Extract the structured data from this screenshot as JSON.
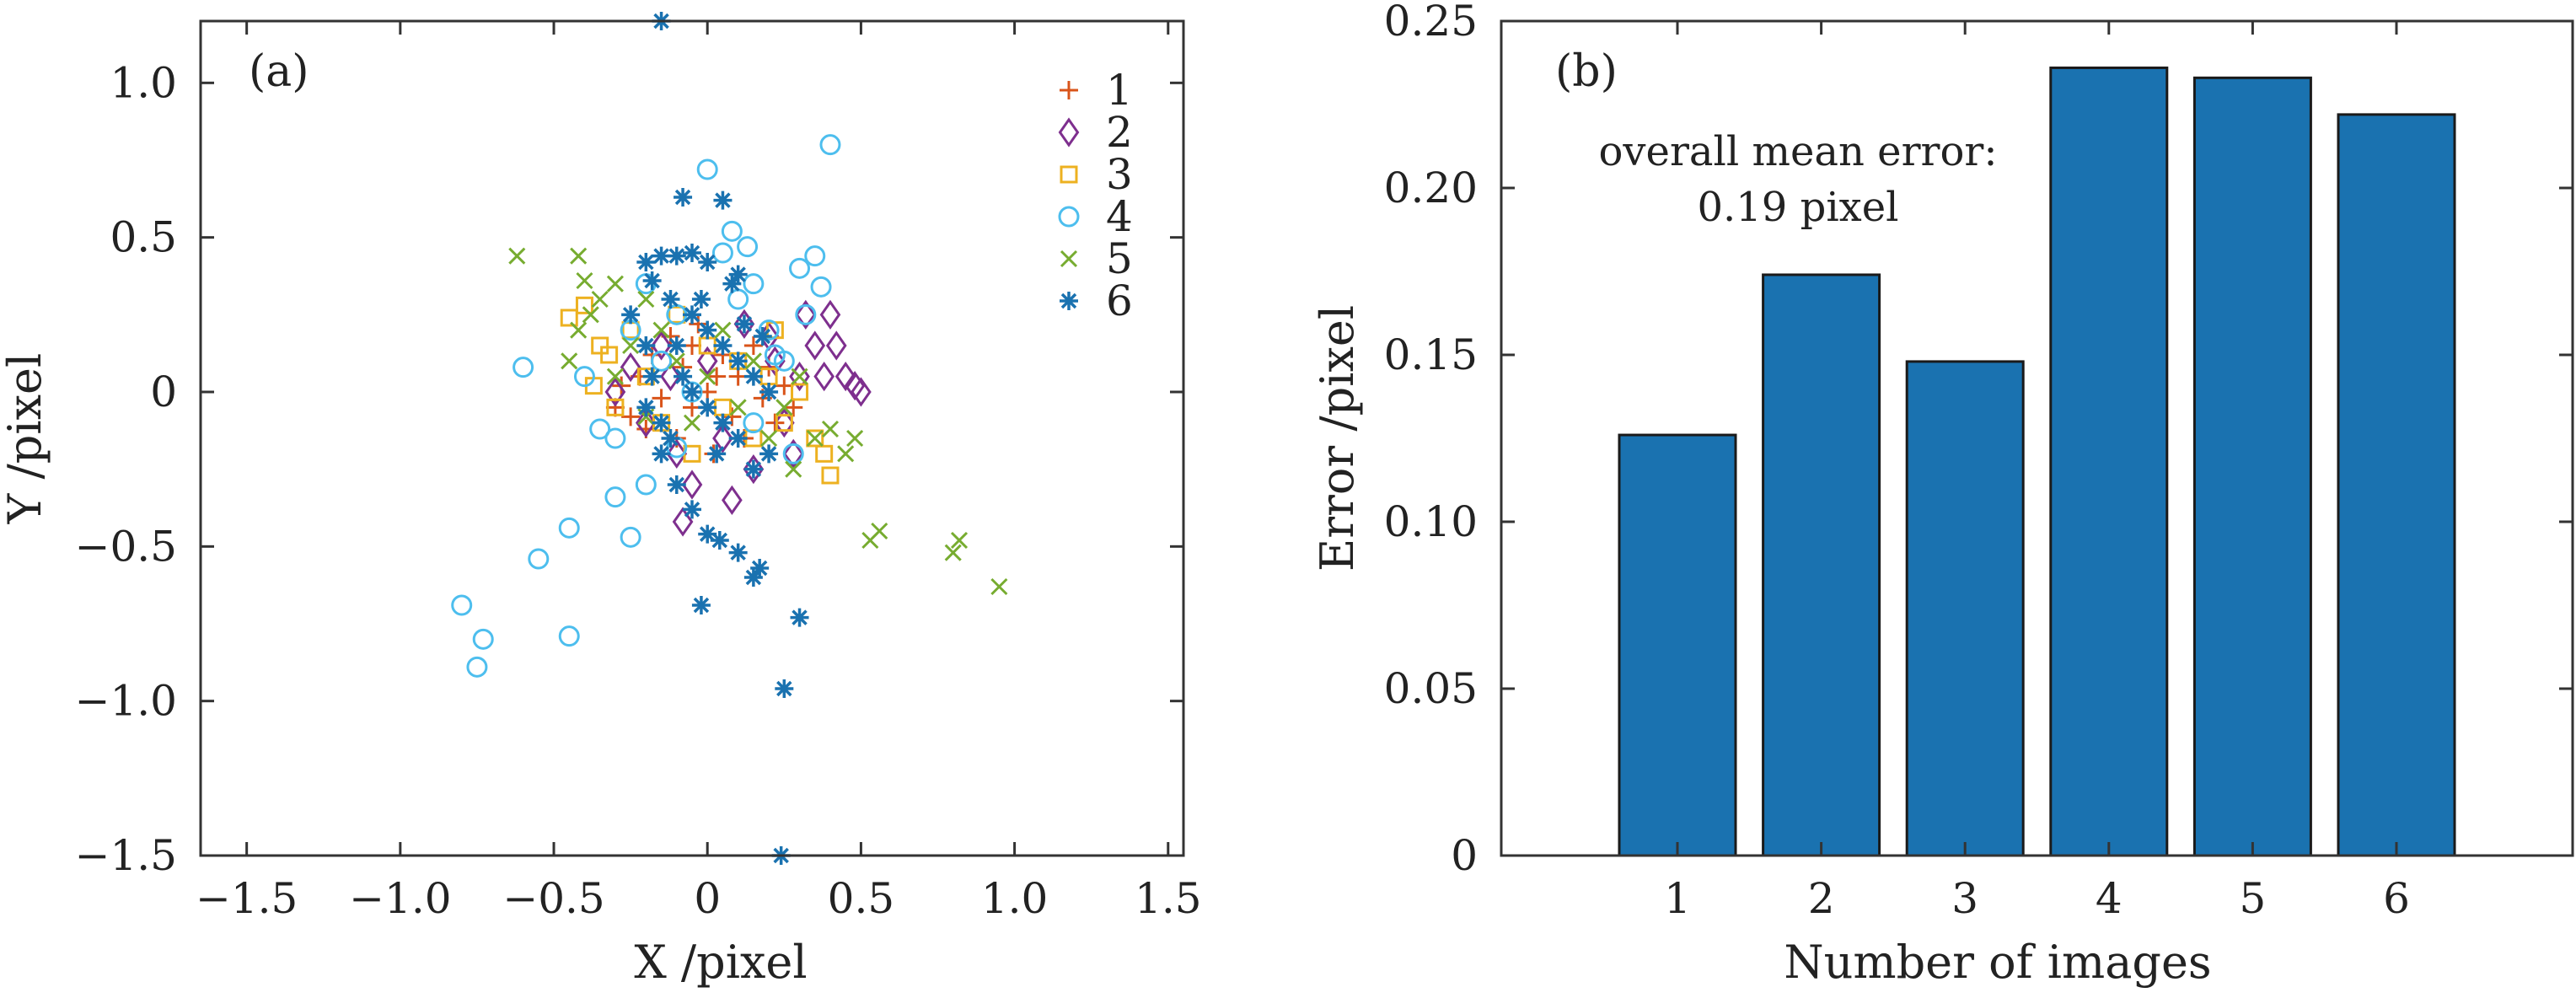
{
  "chart_data": [
    {
      "panel": "(a)",
      "type": "scatter",
      "xlabel": "X /pixel",
      "ylabel": "Y /pixel",
      "xlim": [
        -1.65,
        1.55
      ],
      "ylim": [
        -1.5,
        1.2
      ],
      "xticks": [
        -1.5,
        -1.0,
        -0.5,
        0,
        0.5,
        1.0,
        1.5
      ],
      "xtick_labels": [
        "−1.5",
        "−1.0",
        "−0.5",
        "0",
        "0.5",
        "1.0",
        "1.5"
      ],
      "yticks": [
        1.0,
        0.5,
        0,
        -0.5,
        -1.0,
        -1.5
      ],
      "ytick_labels": [
        "1.0",
        "0.5",
        "0",
        "−0.5",
        "−1.0",
        "−1.5"
      ],
      "grid": false,
      "legend_position": "top-right",
      "series": [
        {
          "name": "1",
          "marker": "plus",
          "color": "#d9541a",
          "points": [
            [
              -0.3,
              -0.05
            ],
            [
              -0.28,
              0.02
            ],
            [
              -0.25,
              -0.08
            ],
            [
              -0.22,
              0.05
            ],
            [
              -0.2,
              -0.12
            ],
            [
              -0.18,
              0.12
            ],
            [
              -0.15,
              -0.02
            ],
            [
              -0.12,
              0.18
            ],
            [
              -0.1,
              -0.15
            ],
            [
              -0.08,
              0.08
            ],
            [
              -0.05,
              -0.05
            ],
            [
              -0.03,
              0.22
            ],
            [
              0.0,
              0.0
            ],
            [
              0.02,
              -0.2
            ],
            [
              0.05,
              0.12
            ],
            [
              0.08,
              -0.08
            ],
            [
              0.1,
              0.05
            ],
            [
              0.12,
              -0.15
            ],
            [
              0.15,
              0.15
            ],
            [
              0.18,
              -0.02
            ],
            [
              0.2,
              0.08
            ],
            [
              0.22,
              -0.1
            ],
            [
              0.25,
              0.02
            ],
            [
              0.28,
              -0.05
            ],
            [
              -0.05,
              0.15
            ],
            [
              0.03,
              0.05
            ]
          ]
        },
        {
          "name": "2",
          "marker": "diamond",
          "color": "#7e2f8e",
          "points": [
            [
              -0.3,
              0.0
            ],
            [
              -0.25,
              0.08
            ],
            [
              -0.2,
              -0.1
            ],
            [
              -0.15,
              0.15
            ],
            [
              -0.1,
              -0.2
            ],
            [
              -0.08,
              -0.42
            ],
            [
              -0.05,
              -0.3
            ],
            [
              0.0,
              0.1
            ],
            [
              0.05,
              -0.15
            ],
            [
              0.08,
              -0.35
            ],
            [
              0.12,
              0.22
            ],
            [
              0.15,
              -0.25
            ],
            [
              0.2,
              0.18
            ],
            [
              0.25,
              -0.1
            ],
            [
              0.3,
              0.05
            ],
            [
              0.32,
              0.25
            ],
            [
              0.35,
              0.15
            ],
            [
              0.38,
              0.05
            ],
            [
              0.4,
              0.25
            ],
            [
              0.42,
              0.15
            ],
            [
              0.45,
              0.05
            ],
            [
              0.48,
              0.02
            ],
            [
              0.5,
              0.0
            ],
            [
              0.28,
              -0.2
            ],
            [
              0.22,
              0.1
            ],
            [
              -0.12,
              0.05
            ]
          ]
        },
        {
          "name": "3",
          "marker": "square",
          "color": "#edb120",
          "points": [
            [
              -0.45,
              0.24
            ],
            [
              -0.4,
              0.28
            ],
            [
              -0.35,
              0.15
            ],
            [
              -0.37,
              0.02
            ],
            [
              -0.32,
              0.12
            ],
            [
              -0.3,
              -0.05
            ],
            [
              -0.25,
              0.2
            ],
            [
              -0.2,
              0.05
            ],
            [
              -0.15,
              -0.1
            ],
            [
              -0.1,
              0.25
            ],
            [
              -0.05,
              -0.2
            ],
            [
              0.0,
              0.15
            ],
            [
              0.05,
              -0.05
            ],
            [
              0.1,
              0.1
            ],
            [
              0.15,
              -0.15
            ],
            [
              0.2,
              0.05
            ],
            [
              0.25,
              -0.1
            ],
            [
              0.3,
              0.0
            ],
            [
              0.35,
              -0.15
            ],
            [
              0.4,
              -0.27
            ],
            [
              0.38,
              -0.2
            ],
            [
              0.22,
              0.2
            ]
          ]
        },
        {
          "name": "4",
          "marker": "circle",
          "color": "#4dbeee",
          "points": [
            [
              -0.8,
              -0.69
            ],
            [
              -0.73,
              -0.8
            ],
            [
              -0.75,
              -0.89
            ],
            [
              -0.55,
              -0.54
            ],
            [
              -0.45,
              -0.44
            ],
            [
              -0.45,
              -0.79
            ],
            [
              -0.3,
              -0.34
            ],
            [
              -0.25,
              -0.47
            ],
            [
              -0.2,
              -0.3
            ],
            [
              -0.35,
              -0.12
            ],
            [
              -0.3,
              -0.15
            ],
            [
              -0.25,
              0.2
            ],
            [
              -0.2,
              0.35
            ],
            [
              -0.15,
              0.1
            ],
            [
              -0.1,
              0.25
            ],
            [
              -0.05,
              0.0
            ],
            [
              0.0,
              0.72
            ],
            [
              0.05,
              0.45
            ],
            [
              0.08,
              0.52
            ],
            [
              0.1,
              0.3
            ],
            [
              0.13,
              0.47
            ],
            [
              0.15,
              0.35
            ],
            [
              0.2,
              0.2
            ],
            [
              0.25,
              0.1
            ],
            [
              0.3,
              0.4
            ],
            [
              0.35,
              0.44
            ],
            [
              0.37,
              0.34
            ],
            [
              0.4,
              0.8
            ],
            [
              0.32,
              0.25
            ],
            [
              0.28,
              -0.2
            ],
            [
              -0.6,
              0.08
            ],
            [
              0.15,
              -0.1
            ],
            [
              -0.1,
              -0.18
            ],
            [
              0.22,
              0.12
            ],
            [
              -0.4,
              0.05
            ]
          ]
        },
        {
          "name": "5",
          "marker": "x",
          "color": "#77ac30",
          "points": [
            [
              -0.62,
              0.44
            ],
            [
              -0.42,
              0.44
            ],
            [
              -0.42,
              0.2
            ],
            [
              -0.4,
              0.36
            ],
            [
              -0.45,
              0.1
            ],
            [
              -0.38,
              0.25
            ],
            [
              -0.3,
              0.35
            ],
            [
              -0.3,
              0.05
            ],
            [
              -0.25,
              0.15
            ],
            [
              -0.2,
              0.3
            ],
            [
              -0.2,
              -0.08
            ],
            [
              -0.15,
              0.2
            ],
            [
              -0.1,
              0.1
            ],
            [
              -0.05,
              -0.1
            ],
            [
              0.0,
              0.05
            ],
            [
              0.05,
              0.2
            ],
            [
              0.1,
              -0.05
            ],
            [
              0.15,
              0.1
            ],
            [
              0.2,
              -0.15
            ],
            [
              0.25,
              -0.05
            ],
            [
              0.3,
              0.05
            ],
            [
              0.35,
              -0.15
            ],
            [
              0.4,
              -0.12
            ],
            [
              0.45,
              -0.2
            ],
            [
              0.48,
              -0.15
            ],
            [
              0.53,
              -0.48
            ],
            [
              0.56,
              -0.45
            ],
            [
              0.8,
              -0.52
            ],
            [
              0.82,
              -0.48
            ],
            [
              0.95,
              -0.63
            ],
            [
              -0.35,
              0.3
            ],
            [
              0.28,
              -0.25
            ]
          ]
        },
        {
          "name": "6",
          "marker": "asterisk",
          "color": "#1a72b0",
          "points": [
            [
              -0.15,
              1.2
            ],
            [
              -0.08,
              0.63
            ],
            [
              0.05,
              0.62
            ],
            [
              -0.2,
              0.42
            ],
            [
              -0.15,
              0.44
            ],
            [
              -0.1,
              0.44
            ],
            [
              -0.18,
              0.36
            ],
            [
              -0.05,
              0.45
            ],
            [
              0.0,
              0.42
            ],
            [
              0.1,
              0.38
            ],
            [
              -0.12,
              0.3
            ],
            [
              -0.05,
              0.25
            ],
            [
              0.0,
              0.2
            ],
            [
              0.05,
              0.15
            ],
            [
              0.1,
              0.1
            ],
            [
              -0.1,
              0.15
            ],
            [
              -0.08,
              0.05
            ],
            [
              -0.05,
              0.0
            ],
            [
              0.0,
              -0.05
            ],
            [
              0.05,
              -0.1
            ],
            [
              0.1,
              -0.15
            ],
            [
              -0.15,
              -0.1
            ],
            [
              -0.2,
              -0.05
            ],
            [
              0.15,
              0.05
            ],
            [
              0.2,
              0.0
            ],
            [
              0.2,
              -0.2
            ],
            [
              0.15,
              -0.25
            ],
            [
              -0.15,
              -0.2
            ],
            [
              -0.1,
              -0.3
            ],
            [
              -0.05,
              -0.38
            ],
            [
              0.0,
              -0.46
            ],
            [
              0.04,
              -0.48
            ],
            [
              0.1,
              -0.52
            ],
            [
              0.15,
              -0.6
            ],
            [
              0.17,
              -0.57
            ],
            [
              -0.02,
              -0.69
            ],
            [
              0.3,
              -0.73
            ],
            [
              0.25,
              -0.96
            ],
            [
              0.24,
              -1.5
            ],
            [
              -0.25,
              0.25
            ],
            [
              -0.2,
              0.15
            ],
            [
              0.12,
              0.22
            ],
            [
              -0.02,
              0.3
            ],
            [
              0.03,
              -0.2
            ],
            [
              -0.12,
              -0.15
            ],
            [
              0.08,
              0.35
            ],
            [
              -0.18,
              0.05
            ],
            [
              0.18,
              0.18
            ]
          ]
        }
      ]
    },
    {
      "panel": "(b)",
      "type": "bar",
      "categories": [
        "1",
        "2",
        "3",
        "4",
        "5",
        "6"
      ],
      "values": [
        0.126,
        0.174,
        0.148,
        0.236,
        0.233,
        0.222
      ],
      "xlabel": "Number of images",
      "ylabel": "Error /pixel",
      "ylim": [
        0,
        0.25
      ],
      "yticks": [
        0,
        0.05,
        0.1,
        0.15,
        0.2,
        0.25
      ],
      "ytick_labels": [
        "0",
        "0.05",
        "0.10",
        "0.15",
        "0.20",
        "0.25"
      ],
      "bar_color": "#1a72b0",
      "grid": false,
      "annotation": [
        "overall mean error:",
        "0.19 pixel"
      ]
    }
  ]
}
